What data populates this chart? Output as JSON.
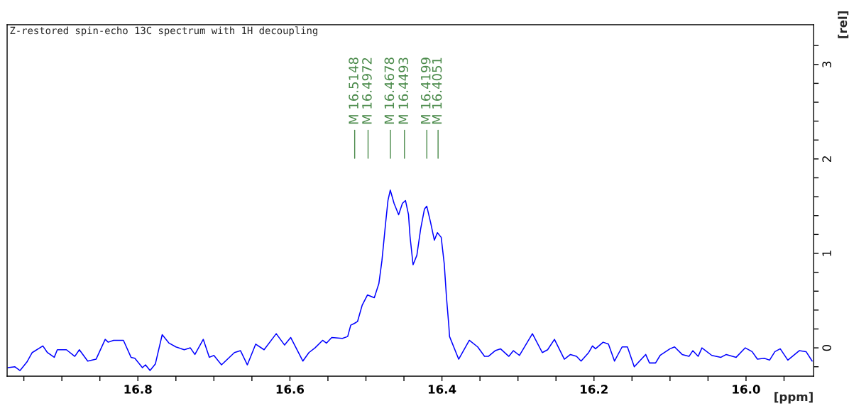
{
  "chart_data": {
    "type": "line",
    "title": "Z-restored spin-echo 13C spectrum with 1H decoupling",
    "xlabel": "[ppm]",
    "ylabel": "[rel]",
    "xlim": [
      16.972,
      15.911
    ],
    "ylim": [
      -0.3,
      3.42
    ],
    "xticks": [
      {
        "value": 16.95,
        "label": null
      },
      {
        "value": 16.9,
        "label": null
      },
      {
        "value": 16.85,
        "label": null
      },
      16.8,
      {
        "value": 16.75,
        "label": null
      },
      {
        "value": 16.7,
        "label": null
      },
      {
        "value": 16.65,
        "label": null
      },
      16.6,
      {
        "value": 16.55,
        "label": null
      },
      {
        "value": 16.5,
        "label": null
      },
      {
        "value": 16.45,
        "label": null
      },
      16.4,
      {
        "value": 16.35,
        "label": null
      },
      {
        "value": 16.3,
        "label": null
      },
      {
        "value": 16.25,
        "label": null
      },
      16.2,
      {
        "value": 16.15,
        "label": null
      },
      {
        "value": 16.1,
        "label": null
      },
      {
        "value": 16.05,
        "label": null
      },
      {
        "value": 16.0,
        "label": "16.0"
      },
      {
        "value": 15.95,
        "label": null
      }
    ],
    "yticks": [
      {
        "value": -0.2,
        "label": null
      },
      0,
      {
        "value": 0.2,
        "label": null
      },
      {
        "value": 0.4,
        "label": null
      },
      {
        "value": 0.6,
        "label": null
      },
      {
        "value": 0.8,
        "label": null
      },
      1,
      {
        "value": 1.2,
        "label": null
      },
      {
        "value": 1.4,
        "label": null
      },
      {
        "value": 1.6,
        "label": null
      },
      {
        "value": 1.8,
        "label": null
      },
      2,
      {
        "value": 2.2,
        "label": null
      },
      {
        "value": 2.4,
        "label": null
      },
      {
        "value": 2.6,
        "label": null
      },
      {
        "value": 2.8,
        "label": null
      },
      3,
      {
        "value": 3.2,
        "label": null
      }
    ],
    "grid": false,
    "legend": false,
    "annotations": [
      {
        "text": "M 16.5148",
        "x": 16.5148
      },
      {
        "text": "M 16.4972",
        "x": 16.4972
      },
      {
        "text": "M 16.4678",
        "x": 16.4678
      },
      {
        "text": "M 16.4493",
        "x": 16.4493
      },
      {
        "text": "M 16.4199",
        "x": 16.4199
      },
      {
        "text": "M 16.4051",
        "x": 16.4051
      }
    ],
    "series": [
      {
        "color": "#0000ff",
        "x": [
          16.971,
          16.962,
          16.955,
          16.946,
          16.939,
          16.925,
          16.919,
          16.91,
          16.906,
          16.894,
          16.883,
          16.877,
          16.866,
          16.855,
          16.843,
          16.839,
          16.832,
          16.819,
          16.809,
          16.804,
          16.794,
          16.79,
          16.784,
          16.777,
          16.768,
          16.759,
          16.75,
          16.739,
          16.731,
          16.725,
          16.714,
          16.706,
          16.7,
          16.69,
          16.673,
          16.665,
          16.656,
          16.645,
          16.634,
          16.618,
          16.607,
          16.599,
          16.583,
          16.575,
          16.567,
          16.557,
          16.552,
          16.545,
          16.531,
          16.524,
          16.52,
          16.515,
          16.511,
          16.505,
          16.498,
          16.489,
          16.483,
          16.479,
          16.474,
          16.471,
          16.468,
          16.463,
          16.457,
          16.452,
          16.448,
          16.444,
          16.442,
          16.438,
          16.433,
          16.428,
          16.423,
          16.42,
          16.415,
          16.41,
          16.406,
          16.401,
          16.397,
          16.394,
          16.391,
          16.39,
          16.378,
          16.364,
          16.353,
          16.344,
          16.339,
          16.33,
          16.323,
          16.312,
          16.306,
          16.298,
          16.281,
          16.268,
          16.261,
          16.252,
          16.239,
          16.231,
          16.223,
          16.217,
          16.207,
          16.202,
          16.198,
          16.188,
          16.181,
          16.173,
          16.163,
          16.156,
          16.147,
          16.132,
          16.127,
          16.119,
          16.113,
          16.1,
          16.094,
          16.084,
          16.075,
          16.07,
          16.063,
          16.058,
          16.045,
          16.033,
          16.026,
          16.013,
          16.001,
          15.992,
          15.985,
          15.976,
          15.969,
          15.962,
          15.955,
          15.945,
          15.93,
          15.921,
          15.913
        ],
        "values": [
          -0.21,
          -0.2,
          -0.24,
          -0.15,
          -0.05,
          0.02,
          -0.05,
          -0.1,
          -0.02,
          -0.02,
          -0.09,
          -0.02,
          -0.14,
          -0.12,
          0.09,
          0.06,
          0.08,
          0.08,
          -0.1,
          -0.11,
          -0.21,
          -0.18,
          -0.24,
          -0.17,
          0.14,
          0.05,
          0.01,
          -0.02,
          0.0,
          -0.07,
          0.09,
          -0.1,
          -0.08,
          -0.18,
          -0.05,
          -0.03,
          -0.18,
          0.04,
          -0.02,
          0.15,
          0.03,
          0.11,
          -0.14,
          -0.05,
          0.0,
          0.08,
          0.05,
          0.11,
          0.1,
          0.12,
          0.24,
          0.26,
          0.28,
          0.45,
          0.56,
          0.53,
          0.68,
          0.92,
          1.33,
          1.56,
          1.67,
          1.53,
          1.41,
          1.53,
          1.56,
          1.41,
          1.18,
          0.88,
          0.98,
          1.26,
          1.47,
          1.5,
          1.33,
          1.14,
          1.22,
          1.17,
          0.89,
          0.53,
          0.24,
          0.12,
          -0.12,
          0.08,
          0.01,
          -0.09,
          -0.09,
          -0.03,
          -0.01,
          -0.09,
          -0.03,
          -0.08,
          0.15,
          -0.05,
          -0.02,
          0.09,
          -0.12,
          -0.07,
          -0.09,
          -0.14,
          -0.05,
          0.02,
          -0.01,
          0.06,
          0.04,
          -0.14,
          0.01,
          0.01,
          -0.2,
          -0.07,
          -0.16,
          -0.16,
          -0.08,
          -0.01,
          0.01,
          -0.07,
          -0.09,
          -0.03,
          -0.09,
          0.0,
          -0.08,
          -0.1,
          -0.07,
          -0.1,
          0.0,
          -0.04,
          -0.12,
          -0.11,
          -0.13,
          -0.04,
          -0.01,
          -0.13,
          -0.03,
          -0.04,
          -0.14
        ]
      }
    ]
  }
}
